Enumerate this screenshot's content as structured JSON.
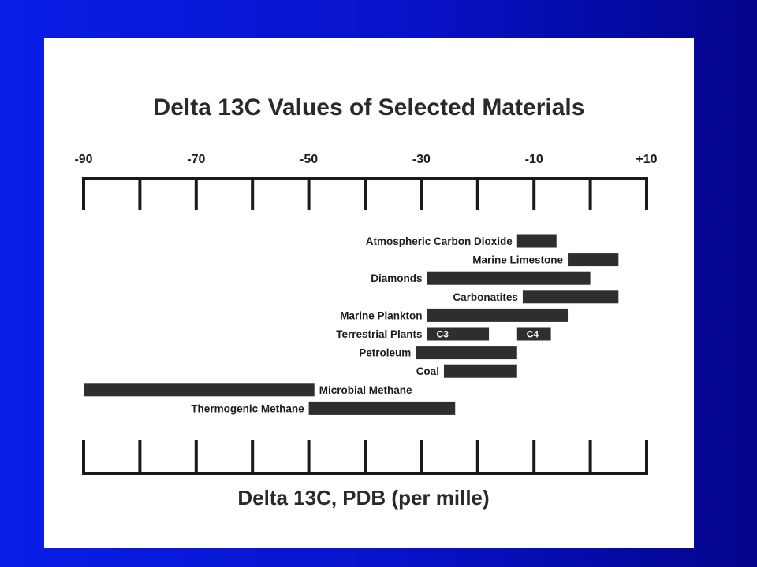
{
  "chart_data": {
    "type": "bar",
    "orientation": "horizontal-range",
    "title": "Delta 13C Values of Selected Materials",
    "xlabel": "Delta 13C, PDB (per mille)",
    "xlim": [
      -90,
      10
    ],
    "tick_labels": [
      "-90",
      "-70",
      "-50",
      "-30",
      "-10",
      "+10"
    ],
    "tick_values": [
      -90,
      -70,
      -50,
      -30,
      -10,
      10
    ],
    "minor_ticks": [
      -80,
      -60,
      -40,
      -20,
      0
    ],
    "bars": [
      {
        "name": "Atmospheric Carbon Dioxide",
        "segments": [
          {
            "from": -13,
            "to": -6,
            "label": ""
          }
        ],
        "label_side": "left"
      },
      {
        "name": "Marine Limestone",
        "segments": [
          {
            "from": -4,
            "to": 5,
            "label": ""
          }
        ],
        "label_side": "left"
      },
      {
        "name": "Diamonds",
        "segments": [
          {
            "from": -29,
            "to": 0,
            "label": ""
          }
        ],
        "label_side": "left"
      },
      {
        "name": "Carbonatites",
        "segments": [
          {
            "from": -12,
            "to": 5,
            "label": ""
          }
        ],
        "label_side": "left"
      },
      {
        "name": "Marine Plankton",
        "segments": [
          {
            "from": -29,
            "to": -4,
            "label": ""
          }
        ],
        "label_side": "left"
      },
      {
        "name": "Terrestrial Plants",
        "segments": [
          {
            "from": -29,
            "to": -18,
            "label": "C3"
          },
          {
            "from": -13,
            "to": -7,
            "label": "C4"
          }
        ],
        "label_side": "left"
      },
      {
        "name": "Petroleum",
        "segments": [
          {
            "from": -31,
            "to": -13,
            "label": ""
          }
        ],
        "label_side": "left"
      },
      {
        "name": "Coal",
        "segments": [
          {
            "from": -26,
            "to": -13,
            "label": ""
          }
        ],
        "label_side": "left"
      },
      {
        "name": "Microbial Methane",
        "segments": [
          {
            "from": -90,
            "to": -49,
            "label": ""
          }
        ],
        "label_side": "right"
      },
      {
        "name": "Thermogenic Methane",
        "segments": [
          {
            "from": -50,
            "to": -24,
            "label": ""
          }
        ],
        "label_side": "left"
      }
    ],
    "colors": {
      "bar": "#2e2e2e",
      "axis": "#1a1a1a",
      "panel": "#ffffff",
      "background": "#0712c8"
    },
    "grid": false
  }
}
